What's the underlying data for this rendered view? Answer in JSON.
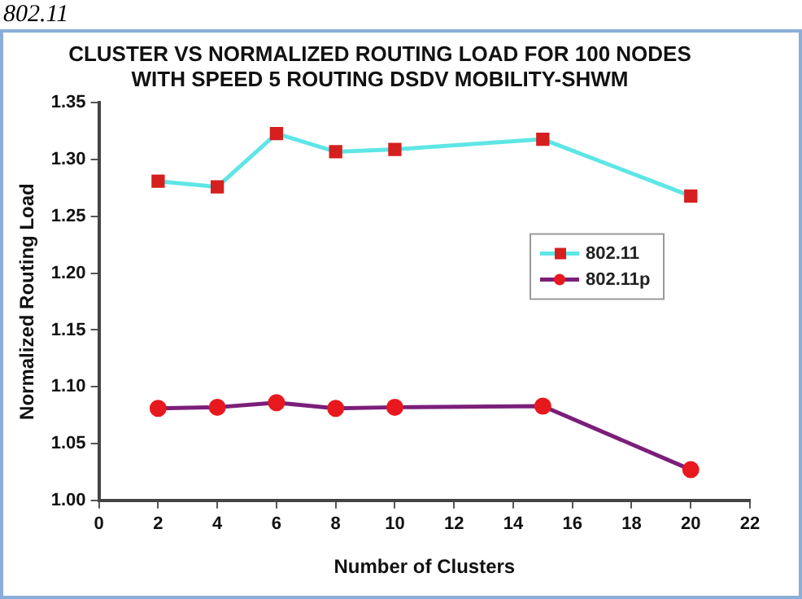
{
  "chart_data": {
    "type": "line",
    "title": "CLUSTER VS NORMALIZED ROUTING LOAD FOR 100 NODES\nWITH SPEED 5 ROUTING DSDV MOBILITY-SHWM",
    "xlabel": "Number of Clusters",
    "ylabel": "Normalized Routing Load",
    "annotations": [
      "802.11"
    ],
    "x": [
      2,
      4,
      6,
      8,
      10,
      15,
      20
    ],
    "series": [
      {
        "name": "802.11",
        "color": "#5ee6e6",
        "marker": "square",
        "colors": [
          "#d61f1f",
          "#d61f1f",
          "#d61f1f",
          "#d61f1f",
          "#d61f1f",
          "#d61f1f",
          "#d61f1f"
        ],
        "values": [
          1.281,
          1.276,
          1.323,
          1.307,
          1.309,
          1.318,
          1.268
        ]
      },
      {
        "name": "802.11p",
        "color": "#7b1f7a",
        "marker": "circle",
        "colors": [
          "#e8191e",
          "#e8191e",
          "#e8191e",
          "#e8191e",
          "#e8191e",
          "#e8191e",
          "#e8191e"
        ],
        "values": [
          1.081,
          1.082,
          1.086,
          1.081,
          1.082,
          1.083,
          1.027
        ]
      }
    ],
    "xlim": [
      0,
      22
    ],
    "xticks": [
      0,
      2,
      4,
      6,
      8,
      10,
      12,
      14,
      16,
      18,
      20,
      22
    ],
    "ylim": [
      1,
      1.35
    ],
    "yticks": [
      {
        "value": 1,
        "label": "1.00"
      },
      {
        "value": 1.05,
        "label": "1.05"
      },
      {
        "value": 1.1,
        "label": "1.10"
      },
      {
        "value": 1.15,
        "label": "1.15"
      },
      {
        "value": 1.2,
        "label": "1.20"
      },
      {
        "value": 1.25,
        "label": "1.25"
      },
      {
        "value": 1.3,
        "label": "1.30"
      },
      {
        "value": 1.35,
        "label": "1.35"
      }
    ],
    "grid": false,
    "legend": "right",
    "line_style": "solid"
  }
}
